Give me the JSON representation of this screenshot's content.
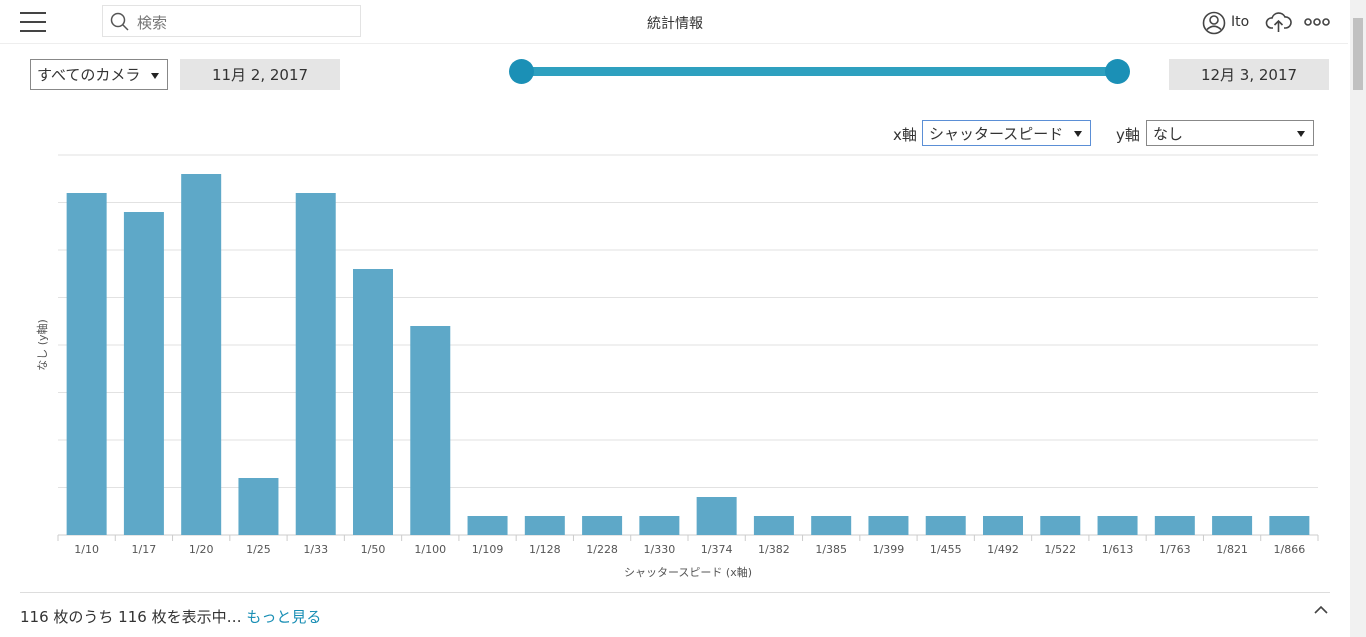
{
  "header": {
    "search_placeholder": "検索",
    "title": "統計情報",
    "user": "Ito"
  },
  "controls": {
    "camera": "すべてのカメラ",
    "start_date": "11月 2, 2017",
    "end_date": "12月 3, 2017",
    "x_axis_label": "x軸",
    "x_axis_value": "シャッタースピード",
    "y_axis_label": "y軸",
    "y_axis_value": "なし"
  },
  "chart_data": {
    "type": "bar",
    "x_label": "シャッタースピード (x軸)",
    "y_label": "なし (y軸)",
    "categories": [
      "1/10",
      "1/17",
      "1/20",
      "1/25",
      "1/33",
      "1/50",
      "1/100",
      "1/109",
      "1/128",
      "1/228",
      "1/330",
      "1/374",
      "1/382",
      "1/385",
      "1/399",
      "1/455",
      "1/492",
      "1/522",
      "1/613",
      "1/763",
      "1/821",
      "1/866"
    ],
    "values": [
      18,
      17,
      19,
      3,
      18,
      14,
      11,
      1,
      1,
      1,
      1,
      2,
      1,
      1,
      1,
      1,
      1,
      1,
      1,
      1,
      1,
      1
    ],
    "color": "#5ea8c8",
    "ylim": [
      0,
      20
    ],
    "yticks": [
      0,
      2.5,
      5,
      7.5,
      10,
      12.5,
      15,
      17.5,
      20
    ],
    "grid": true
  },
  "footer": {
    "status": "116 枚のうち 116 枚を表示中…",
    "more_link": "もっと見る"
  }
}
